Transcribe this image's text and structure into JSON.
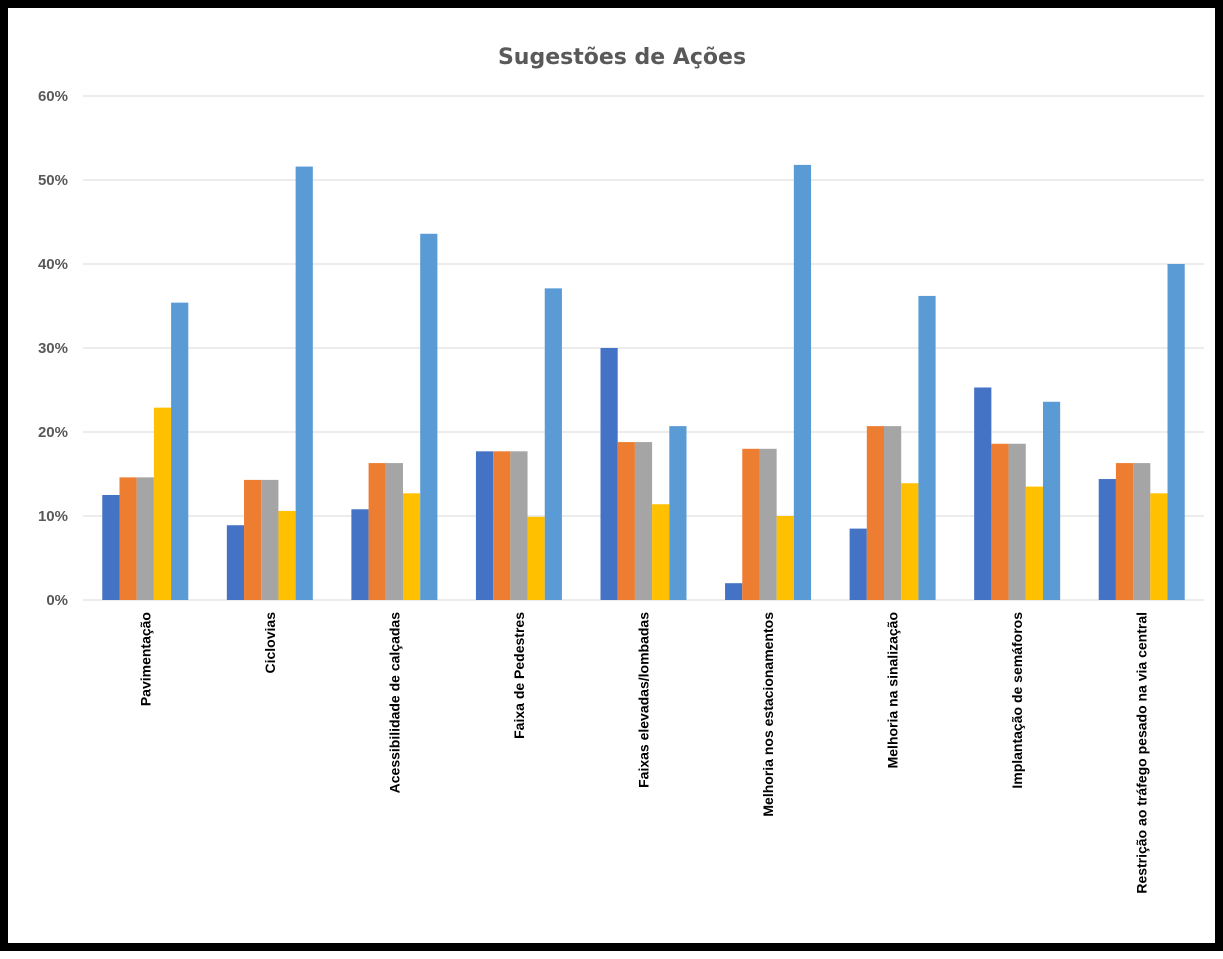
{
  "chart_data": {
    "type": "bar",
    "title": "Sugestões de Ações",
    "xlabel": "",
    "ylabel": "",
    "ylim": [
      0,
      0.6
    ],
    "yticks": [
      0,
      0.1,
      0.2,
      0.3,
      0.4,
      0.5,
      0.6
    ],
    "ytick_labels": [
      "0%",
      "10%",
      "20%",
      "30%",
      "40%",
      "50%",
      "60%"
    ],
    "grid": true,
    "legend": "none",
    "categories": [
      "Pavimentação",
      "Ciclovias",
      "Acessibilidade de calçadas",
      "Faixa de Pedestres",
      "Faixas elevadas/lombadas",
      "Melhoria nos estacionamentos",
      "Melhoria na sinalização",
      "Implantação de semáforos",
      "Restrição ao tráfego pesado na via central"
    ],
    "series": [
      {
        "color": "#4472c4",
        "values": [
          0.125,
          0.089,
          0.108,
          0.177,
          0.3,
          0.02,
          0.085,
          0.253,
          0.144
        ]
      },
      {
        "color": "#ed7d31",
        "values": [
          0.146,
          0.143,
          0.163,
          0.177,
          0.188,
          0.18,
          0.207,
          0.186,
          0.163
        ]
      },
      {
        "color": "#a5a5a5",
        "values": [
          0.146,
          0.143,
          0.163,
          0.177,
          0.188,
          0.18,
          0.207,
          0.186,
          0.163
        ]
      },
      {
        "color": "#ffc000",
        "values": [
          0.229,
          0.106,
          0.127,
          0.099,
          0.114,
          0.1,
          0.139,
          0.135,
          0.127
        ]
      },
      {
        "color": "#5b9bd5",
        "values": [
          0.354,
          0.516,
          0.436,
          0.371,
          0.207,
          0.518,
          0.362,
          0.236,
          0.4
        ]
      }
    ]
  }
}
